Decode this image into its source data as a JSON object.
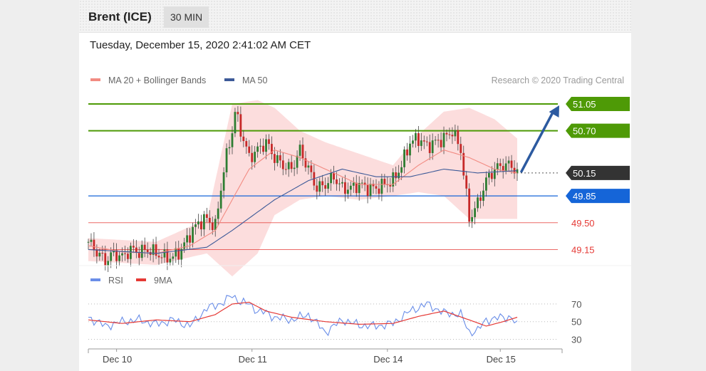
{
  "header": {
    "instrument": "Brent (ICE)",
    "timeframe": "30 MIN"
  },
  "datetime": "Tuesday, December 15, 2020 2:41:02 AM CET",
  "copyright": "Research © 2020 Trading Central",
  "colors": {
    "resistance": "#4e9a06",
    "pivot": "#1565d8",
    "support": "#e53935",
    "last_price": "#333333",
    "candle_up": "#2e7d32",
    "candle_down": "#c62828",
    "ma20": "#f28b82",
    "ma50": "#3d5a98",
    "bollinger_fill": "#fbd5d5",
    "rsi": "#6a8ee8",
    "rsi_ma": "#e53935",
    "arrow": "#2c5aa0"
  },
  "chart_data": [
    {
      "type": "candlestick",
      "legend": [
        {
          "name": "MA 20 + Bollinger Bands",
          "color": "#f28b82"
        },
        {
          "name": "MA 50",
          "color": "#3d5a98"
        }
      ],
      "legend_placement": "top-left",
      "ylim": [
        48.95,
        51.18
      ],
      "x_ticks": [
        "Dec 10",
        "Dec 11",
        "Dec 14",
        "Dec 15"
      ],
      "levels": [
        {
          "value": 51.05,
          "label": "51.05",
          "kind": "resistance"
        },
        {
          "value": 50.7,
          "label": "50.70",
          "kind": "resistance"
        },
        {
          "value": 50.15,
          "label": "50.15",
          "kind": "last_price"
        },
        {
          "value": 49.85,
          "label": "49.85",
          "kind": "pivot"
        },
        {
          "value": 49.5,
          "label": "49.50",
          "kind": "support"
        },
        {
          "value": 49.15,
          "label": "49.15",
          "kind": "support"
        }
      ],
      "forecast_arrow": {
        "from": 50.15,
        "to": 51.05,
        "direction": "up"
      },
      "price_path": [
        [
          0,
          49.25
        ],
        [
          3,
          49.12
        ],
        [
          6,
          49.0
        ],
        [
          9,
          49.1
        ],
        [
          12,
          49.05
        ],
        [
          15,
          49.15
        ],
        [
          18,
          49.12
        ],
        [
          21,
          49.15
        ],
        [
          24,
          49.1
        ],
        [
          27,
          49.05
        ],
        [
          30,
          49.05
        ],
        [
          33,
          49.15
        ],
        [
          36,
          49.35
        ],
        [
          39,
          49.5
        ],
        [
          42,
          49.55
        ],
        [
          45,
          49.45
        ],
        [
          48,
          50.2
        ],
        [
          51,
          50.7
        ],
        [
          52,
          50.95
        ],
        [
          54,
          50.7
        ],
        [
          57,
          50.35
        ],
        [
          60,
          50.45
        ],
        [
          63,
          50.55
        ],
        [
          66,
          50.35
        ],
        [
          69,
          50.25
        ],
        [
          72,
          50.2
        ],
        [
          75,
          50.45
        ],
        [
          78,
          50.2
        ],
        [
          81,
          49.95
        ],
        [
          84,
          50.0
        ],
        [
          87,
          50.1
        ],
        [
          90,
          49.95
        ],
        [
          93,
          49.95
        ],
        [
          96,
          50.0
        ],
        [
          99,
          49.95
        ],
        [
          102,
          49.95
        ],
        [
          105,
          50.0
        ],
        [
          108,
          50.05
        ],
        [
          111,
          50.25
        ],
        [
          114,
          50.55
        ],
        [
          117,
          50.6
        ],
        [
          120,
          50.5
        ],
        [
          123,
          50.55
        ],
        [
          126,
          50.6
        ],
        [
          129,
          50.7
        ],
        [
          132,
          50.45
        ],
        [
          135,
          49.55
        ],
        [
          138,
          49.75
        ],
        [
          141,
          50.05
        ],
        [
          144,
          50.2
        ],
        [
          147,
          50.25
        ],
        [
          150,
          50.25
        ],
        [
          152,
          50.15
        ]
      ],
      "ma20_path": [
        [
          0,
          49.2
        ],
        [
          12,
          49.12
        ],
        [
          24,
          49.1
        ],
        [
          36,
          49.2
        ],
        [
          45,
          49.4
        ],
        [
          51,
          49.8
        ],
        [
          57,
          50.2
        ],
        [
          66,
          50.45
        ],
        [
          75,
          50.35
        ],
        [
          84,
          50.2
        ],
        [
          96,
          50.0
        ],
        [
          108,
          50.0
        ],
        [
          117,
          50.25
        ],
        [
          126,
          50.45
        ],
        [
          135,
          50.35
        ],
        [
          144,
          50.2
        ],
        [
          152,
          50.15
        ]
      ],
      "ma50_path": [
        [
          0,
          49.15
        ],
        [
          24,
          49.1
        ],
        [
          42,
          49.18
        ],
        [
          51,
          49.4
        ],
        [
          66,
          49.8
        ],
        [
          78,
          50.05
        ],
        [
          90,
          50.2
        ],
        [
          102,
          50.1
        ],
        [
          114,
          50.1
        ],
        [
          126,
          50.2
        ],
        [
          138,
          50.15
        ],
        [
          152,
          50.18
        ]
      ],
      "bollinger_upper": [
        [
          0,
          49.3
        ],
        [
          24,
          49.25
        ],
        [
          42,
          49.55
        ],
        [
          51,
          51.05
        ],
        [
          60,
          51.1
        ],
        [
          66,
          51.0
        ],
        [
          75,
          50.7
        ],
        [
          84,
          50.55
        ],
        [
          96,
          50.4
        ],
        [
          108,
          50.25
        ],
        [
          117,
          50.65
        ],
        [
          126,
          50.95
        ],
        [
          135,
          51.0
        ],
        [
          144,
          50.85
        ],
        [
          152,
          50.6
        ]
      ],
      "bollinger_lower": [
        [
          0,
          49.0
        ],
        [
          24,
          48.95
        ],
        [
          42,
          49.1
        ],
        [
          51,
          48.8
        ],
        [
          60,
          49.1
        ],
        [
          66,
          49.6
        ],
        [
          75,
          49.8
        ],
        [
          84,
          49.85
        ],
        [
          96,
          49.8
        ],
        [
          108,
          49.85
        ],
        [
          117,
          49.9
        ],
        [
          126,
          49.85
        ],
        [
          135,
          49.55
        ],
        [
          144,
          49.55
        ],
        [
          152,
          49.55
        ]
      ]
    },
    {
      "type": "line",
      "legend": [
        {
          "name": "RSI",
          "color": "#6a8ee8"
        },
        {
          "name": "9MA",
          "color": "#e53935"
        }
      ],
      "legend_placement": "top-left",
      "ylim": [
        24,
        82
      ],
      "y_ticks": [
        70,
        50,
        30
      ],
      "reference_lines": [
        70,
        50,
        30
      ],
      "rsi": [
        [
          0,
          55
        ],
        [
          6,
          45
        ],
        [
          12,
          50
        ],
        [
          18,
          52
        ],
        [
          24,
          47
        ],
        [
          30,
          52
        ],
        [
          36,
          45
        ],
        [
          42,
          65
        ],
        [
          48,
          72
        ],
        [
          51,
          80
        ],
        [
          54,
          72
        ],
        [
          57,
          70
        ],
        [
          60,
          62
        ],
        [
          63,
          60
        ],
        [
          66,
          55
        ],
        [
          72,
          52
        ],
        [
          78,
          58
        ],
        [
          84,
          38
        ],
        [
          90,
          52
        ],
        [
          96,
          46
        ],
        [
          102,
          45
        ],
        [
          108,
          48
        ],
        [
          114,
          62
        ],
        [
          120,
          70
        ],
        [
          126,
          60
        ],
        [
          132,
          58
        ],
        [
          135,
          38
        ],
        [
          138,
          40
        ],
        [
          141,
          52
        ],
        [
          147,
          55
        ],
        [
          150,
          55
        ],
        [
          152,
          45
        ]
      ],
      "rsi_ma": [
        [
          0,
          52
        ],
        [
          12,
          48
        ],
        [
          24,
          52
        ],
        [
          36,
          50
        ],
        [
          45,
          58
        ],
        [
          51,
          70
        ],
        [
          57,
          72
        ],
        [
          63,
          62
        ],
        [
          72,
          55
        ],
        [
          84,
          50
        ],
        [
          96,
          47
        ],
        [
          108,
          48
        ],
        [
          117,
          56
        ],
        [
          126,
          62
        ],
        [
          135,
          52
        ],
        [
          141,
          45
        ],
        [
          147,
          50
        ],
        [
          152,
          55
        ]
      ]
    }
  ]
}
